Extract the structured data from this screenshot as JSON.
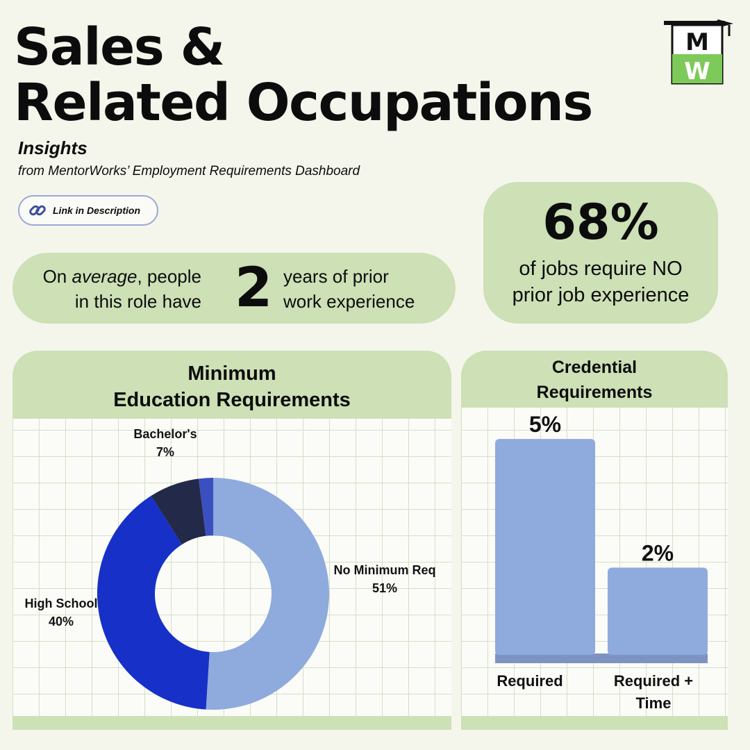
{
  "header": {
    "title_line1": "Sales &",
    "title_line2": "Related Occupations",
    "insights": "Insights",
    "subtitle": "from MentorWorks’ Employment Requirements Dashboard",
    "link_label": "Link in Description",
    "logo_text": "MW"
  },
  "experience": {
    "left_line1_pre": "On ",
    "left_line1_em": "average",
    "left_line1_post": ", people",
    "left_line2": "in this role have",
    "number": "2",
    "right_line1": "years of prior",
    "right_line2": "work experience"
  },
  "no_experience": {
    "percent": "68%",
    "line1": "of jobs require NO",
    "line2": "prior job experience"
  },
  "colors": {
    "background": "#f4f6ec",
    "pill_green": "#cde0b6",
    "no_min": "#8faadc",
    "high_school": "#1730c8",
    "bachelors": "#232948",
    "other": "#3a4fc0",
    "bar": "#8faadc"
  },
  "chart_data": [
    {
      "type": "pie",
      "title_line1": "Minimum",
      "title_line2": "Education Requirements",
      "donut": true,
      "slices": [
        {
          "label": "No Minimum Req",
          "value": 51,
          "display": "51%",
          "color": "#8faadc"
        },
        {
          "label": "High School",
          "value": 40,
          "display": "40%",
          "color": "#1730c8"
        },
        {
          "label": "Bachelor's",
          "value": 7,
          "display": "7%",
          "color": "#232948"
        },
        {
          "label": "",
          "value": 2,
          "display": "",
          "color": "#3a4fc0"
        }
      ]
    },
    {
      "type": "bar",
      "title_line1": "Credential",
      "title_line2": "Requirements",
      "categories": [
        "Required",
        "Required + Time"
      ],
      "category_lines": [
        [
          "Required"
        ],
        [
          "Required +",
          "Time"
        ]
      ],
      "values": [
        5,
        2
      ],
      "value_labels": [
        "5%",
        "2%"
      ],
      "ylim": [
        0,
        5.6
      ]
    }
  ]
}
